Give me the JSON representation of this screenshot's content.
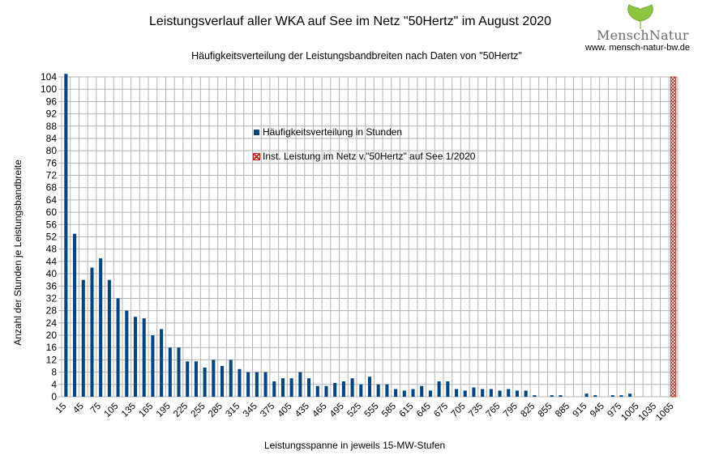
{
  "chart_data": {
    "type": "bar",
    "title": "Leistungsverlauf aller WKA auf See im Netz \"50Hertz\" im August 2020",
    "subtitle": "Häufigkeitsverteilung der Leistungsbandbreiten nach Daten von \"50Hertz\"",
    "xlabel": "Leistungsspanne in jeweils 15-MW-Stufen",
    "ylabel": "Anzahl der Stunden je Leistungsbandbreite",
    "ylim": [
      0,
      104
    ],
    "ytick_step": 4,
    "grid": true,
    "categories": [
      15,
      30,
      45,
      60,
      75,
      90,
      105,
      120,
      135,
      150,
      165,
      180,
      195,
      210,
      225,
      240,
      255,
      270,
      285,
      300,
      315,
      330,
      345,
      360,
      375,
      390,
      405,
      420,
      435,
      450,
      465,
      480,
      495,
      510,
      525,
      540,
      555,
      570,
      585,
      600,
      615,
      630,
      645,
      660,
      675,
      690,
      705,
      720,
      735,
      750,
      765,
      780,
      795,
      810,
      825,
      840,
      855,
      870,
      885,
      900,
      915,
      930,
      945,
      960,
      975,
      990,
      1005,
      1020,
      1035,
      1050,
      1065
    ],
    "xtick_labels": [
      "15",
      "45",
      "75",
      "105",
      "135",
      "165",
      "195",
      "225",
      "255",
      "285",
      "315",
      "345",
      "375",
      "405",
      "435",
      "465",
      "495",
      "525",
      "555",
      "585",
      "615",
      "645",
      "675",
      "705",
      "735",
      "765",
      "795",
      "825",
      "855",
      "885",
      "915",
      "945",
      "975",
      "1005",
      "1035",
      "1065"
    ],
    "series": [
      {
        "name": "Häufigkeitsverteilung in Stunden",
        "color": "#004586",
        "values": [
          105,
          53,
          38,
          42,
          45,
          38,
          32,
          28,
          26,
          25.5,
          20,
          22,
          16,
          16,
          11.5,
          11.5,
          9.5,
          12,
          10,
          12,
          9,
          8,
          8,
          8,
          5,
          6,
          6,
          8,
          6,
          3.5,
          3.5,
          4.5,
          5,
          6,
          4,
          6.5,
          4,
          4,
          2.5,
          2,
          2.5,
          3.5,
          2,
          5,
          5,
          2.5,
          2,
          3,
          2.5,
          2.5,
          2,
          2.5,
          2,
          2,
          0.5,
          0,
          0.5,
          0.5,
          0,
          0,
          1,
          0.5,
          0,
          0.5,
          0.5,
          1,
          0,
          0,
          0,
          0,
          0
        ]
      },
      {
        "name": "Inst. Leistung im Netz v.\"50Hertz\" auf See 1/2020",
        "color": "#c9211e",
        "category": 1065,
        "value": 104
      }
    ]
  },
  "branding": {
    "logo_text": "MenschNatur",
    "url": "www. mensch-natur-bw.de",
    "leaf_color": "#8cc63f"
  },
  "colors": {
    "subtitle": "#e020e0",
    "grid": "#b3b3b3"
  }
}
